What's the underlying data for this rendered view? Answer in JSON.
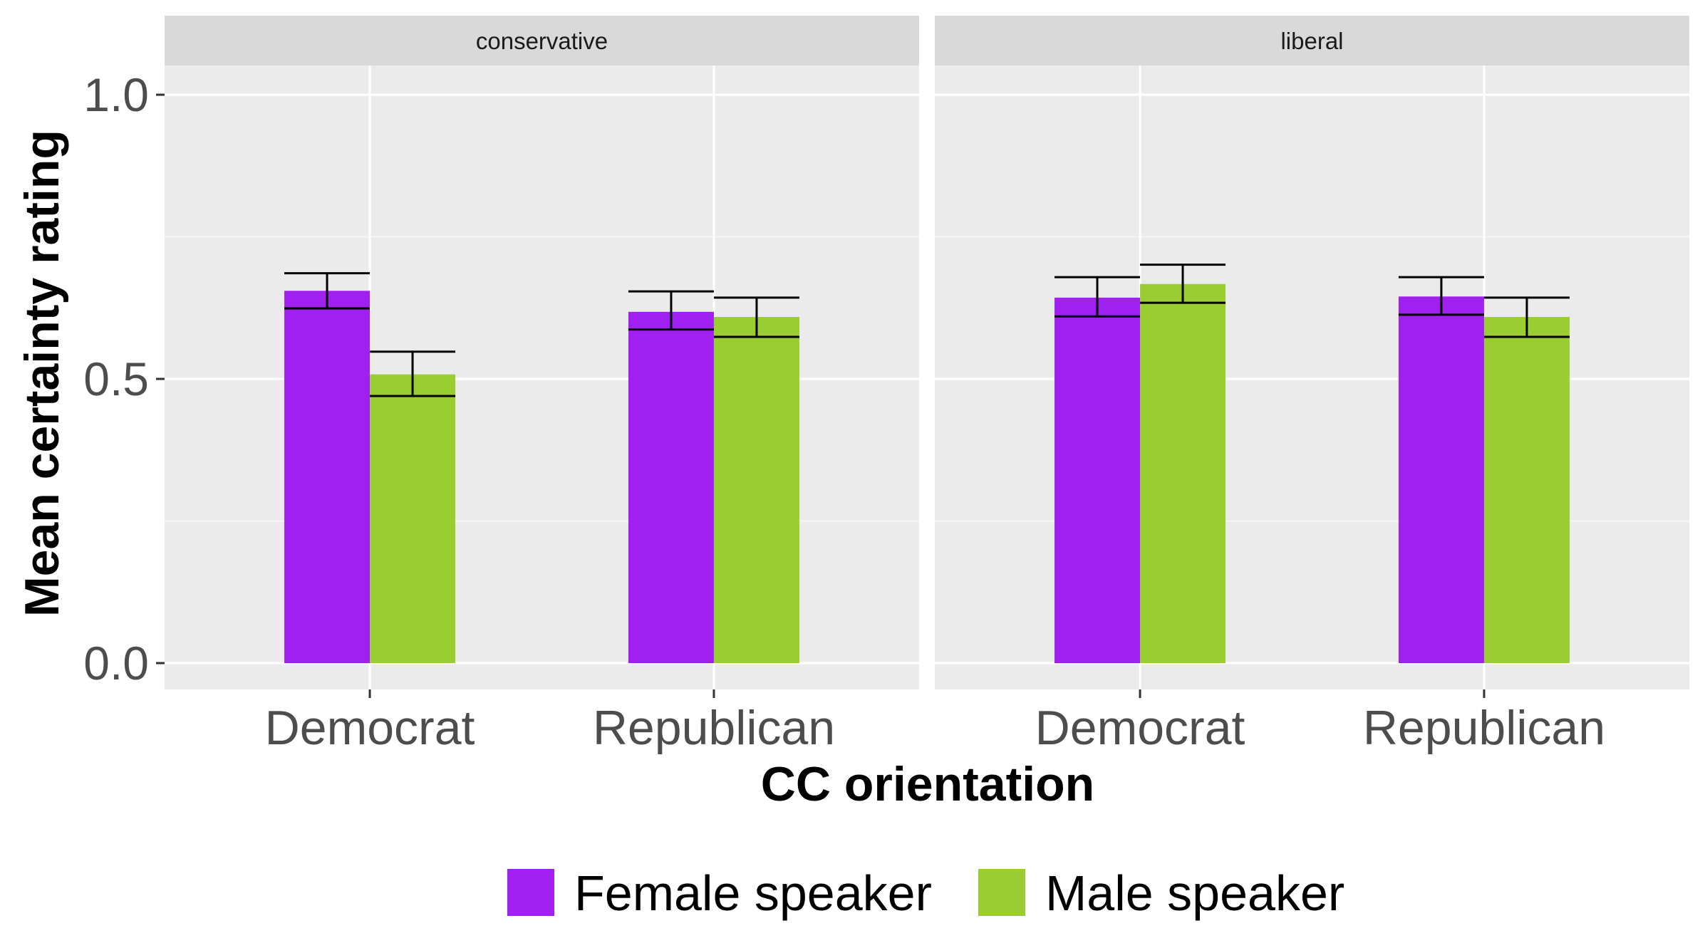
{
  "chart_data": {
    "type": "bar",
    "facets": [
      "conservative",
      "liberal"
    ],
    "categories": [
      "Democrat",
      "Republican"
    ],
    "series": [
      {
        "name": "Female speaker",
        "color": "#A020F0",
        "values": [
          [
            0.655,
            0.618
          ],
          [
            0.643,
            0.645
          ]
        ],
        "error_low": [
          [
            0.624,
            0.587
          ],
          [
            0.61,
            0.613
          ]
        ],
        "error_high": [
          [
            0.686,
            0.654
          ],
          [
            0.679,
            0.679
          ]
        ]
      },
      {
        "name": "Male speaker",
        "color": "#9ACD32",
        "values": [
          [
            0.508,
            0.609
          ],
          [
            0.667,
            0.609
          ]
        ],
        "error_low": [
          [
            0.47,
            0.574
          ],
          [
            0.634,
            0.574
          ]
        ],
        "error_high": [
          [
            0.548,
            0.643
          ],
          [
            0.701,
            0.643
          ]
        ]
      }
    ],
    "xlabel": "CC orientation",
    "ylabel": "Mean certainty rating",
    "y_ticks": [
      "0.0",
      "0.5",
      "1.0"
    ],
    "ylim": [
      -0.05,
      1.05
    ],
    "grid": true,
    "legend_position": "bottom"
  }
}
